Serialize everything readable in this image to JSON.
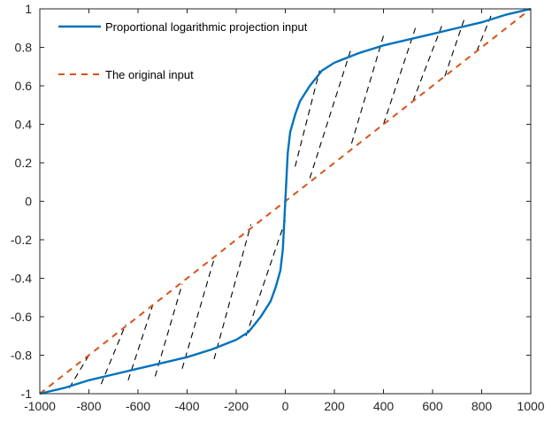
{
  "chart_data": {
    "type": "line",
    "xlim": [
      -1000,
      1000
    ],
    "ylim": [
      -1,
      1
    ],
    "x_ticks": [
      -1000,
      -800,
      -600,
      -400,
      -200,
      0,
      200,
      400,
      600,
      800,
      1000
    ],
    "y_ticks": [
      -1,
      -0.8,
      -0.6,
      -0.4,
      -0.2,
      0,
      0.2,
      0.4,
      0.6,
      0.8,
      1
    ],
    "x_tick_labels": [
      "-1000",
      "-800",
      "-600",
      "-400",
      "-200",
      "0",
      "200",
      "400",
      "600",
      "800",
      "1000"
    ],
    "y_tick_labels": [
      "-1",
      "-0.8",
      "-0.6",
      "-0.4",
      "-0.2",
      "0",
      "0.2",
      "0.4",
      "0.6",
      "0.8",
      "1"
    ],
    "grid": false,
    "legend_position": "top-left",
    "series": [
      {
        "name": "Proportional logarithmic projection input",
        "style": "solid",
        "color": "#0072BD",
        "x": [
          -1000,
          -900,
          -800,
          -700,
          -600,
          -500,
          -400,
          -300,
          -200,
          -150,
          -100,
          -60,
          -40,
          -20,
          -10,
          0,
          10,
          20,
          40,
          60,
          100,
          150,
          200,
          300,
          400,
          500,
          600,
          700,
          800,
          900,
          1000
        ],
        "y": [
          -1,
          -0.97,
          -0.93,
          -0.9,
          -0.87,
          -0.84,
          -0.81,
          -0.77,
          -0.72,
          -0.68,
          -0.6,
          -0.52,
          -0.45,
          -0.36,
          -0.25,
          0,
          0.25,
          0.36,
          0.45,
          0.52,
          0.6,
          0.68,
          0.72,
          0.77,
          0.81,
          0.84,
          0.87,
          0.9,
          0.93,
          0.97,
          1
        ]
      },
      {
        "name": "The original input",
        "style": "dashed",
        "color": "#D95319",
        "x": [
          -1000,
          1000
        ],
        "y": [
          -1,
          1
        ]
      }
    ],
    "projection_lines": {
      "style": "dashed",
      "color": "#000000",
      "segments": [
        {
          "x1": -880,
          "y1": -0.97,
          "x2": -800,
          "y2": -0.8
        },
        {
          "x1": -750,
          "y1": -0.95,
          "x2": -650,
          "y2": -0.64
        },
        {
          "x1": -640,
          "y1": -0.93,
          "x2": -540,
          "y2": -0.54
        },
        {
          "x1": -530,
          "y1": -0.91,
          "x2": -420,
          "y2": -0.43
        },
        {
          "x1": -420,
          "y1": -0.87,
          "x2": -290,
          "y2": -0.3
        },
        {
          "x1": -290,
          "y1": -0.82,
          "x2": -140,
          "y2": -0.12
        },
        {
          "x1": -160,
          "y1": -0.7,
          "x2": 0,
          "y2": -0.1
        },
        {
          "x1": 40,
          "y1": 0.18,
          "x2": 140,
          "y2": 0.68
        },
        {
          "x1": 100,
          "y1": 0.12,
          "x2": 270,
          "y2": 0.8
        },
        {
          "x1": 270,
          "y1": 0.3,
          "x2": 400,
          "y2": 0.86
        },
        {
          "x1": 400,
          "y1": 0.4,
          "x2": 530,
          "y2": 0.9
        },
        {
          "x1": 520,
          "y1": 0.52,
          "x2": 640,
          "y2": 0.92
        },
        {
          "x1": 650,
          "y1": 0.65,
          "x2": 730,
          "y2": 0.95
        },
        {
          "x1": 780,
          "y1": 0.78,
          "x2": 840,
          "y2": 0.97
        }
      ]
    }
  }
}
